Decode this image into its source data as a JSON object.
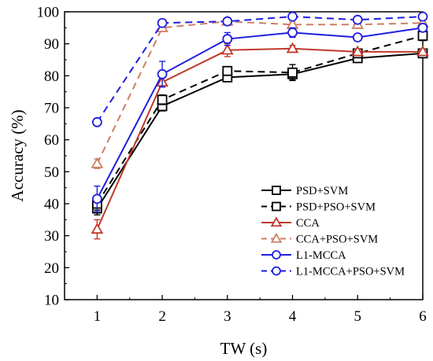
{
  "chart_data": {
    "type": "line",
    "title": "",
    "xlabel": "TW (s)",
    "ylabel": "Accuracy (%)",
    "xlim": [
      0.5,
      6.0
    ],
    "ylim": [
      10,
      100
    ],
    "x": [
      1,
      2,
      3,
      4,
      5,
      6
    ],
    "xticks": [
      "1",
      "2",
      "3",
      "4",
      "5",
      "6"
    ],
    "yticks": [
      "10",
      "20",
      "30",
      "40",
      "50",
      "60",
      "70",
      "80",
      "90",
      "100"
    ],
    "grid": false,
    "legend_position": "bottom-right",
    "series": [
      {
        "name": "PSD+SVM",
        "color": "#000000",
        "dash": "solid",
        "marker": "square",
        "values": [
          38.5,
          70.5,
          79.5,
          80.5,
          85.5,
          87.0
        ],
        "errors": [
          2.0,
          1.5,
          1.0,
          1.8,
          1.0,
          0.8
        ]
      },
      {
        "name": "PSD+PSO+SVM",
        "color": "#000000",
        "dash": "dashed",
        "marker": "square",
        "values": [
          40.0,
          72.5,
          81.5,
          81.0,
          87.0,
          92.5
        ],
        "errors": [
          2.0,
          1.5,
          1.0,
          2.5,
          1.0,
          1.5
        ]
      },
      {
        "name": "CCA",
        "color": "#c0392b",
        "dash": "solid",
        "marker": "triangle",
        "values": [
          32.0,
          78.0,
          88.0,
          88.5,
          87.5,
          87.5
        ],
        "errors": [
          3.0,
          1.5,
          2.0,
          1.0,
          0.8,
          0.8
        ]
      },
      {
        "name": "CCA+PSO+SVM",
        "color": "#cd7f63",
        "dash": "dashed",
        "marker": "triangle",
        "values": [
          52.5,
          95.0,
          97.0,
          96.0,
          96.0,
          96.5
        ],
        "errors": [
          1.5,
          0.8,
          0.8,
          0.8,
          0.8,
          0.8
        ]
      },
      {
        "name": "L1-MCCA",
        "color": "#1f1fe0",
        "dash": "solid",
        "marker": "circle",
        "values": [
          41.5,
          80.5,
          91.5,
          93.5,
          92.0,
          95.0
        ],
        "errors": [
          4.0,
          4.0,
          2.0,
          1.5,
          1.0,
          1.0
        ]
      },
      {
        "name": "L1-MCCA+PSO+SVM",
        "color": "#1f1fe0",
        "dash": "dashed",
        "marker": "circle",
        "values": [
          65.5,
          96.5,
          97.0,
          98.5,
          97.5,
          98.5
        ],
        "errors": [
          0.8,
          0.8,
          0.8,
          0.8,
          0.8,
          0.8
        ]
      }
    ]
  }
}
